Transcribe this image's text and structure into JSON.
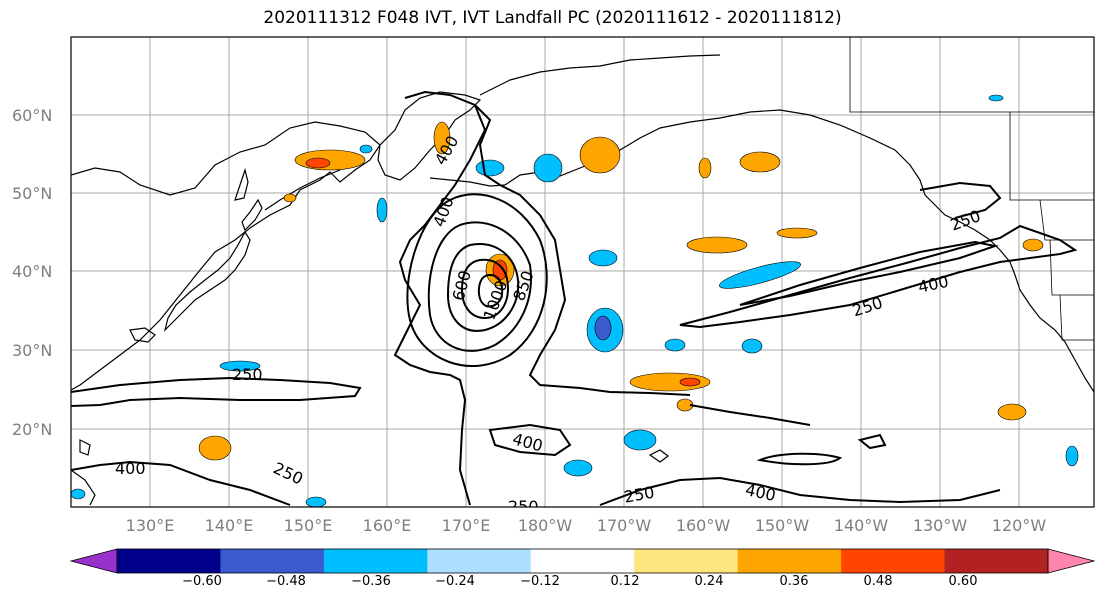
{
  "title": "2020111312 F048 IVT, IVT Landfall PC (2020111612 - 2020111812)",
  "map": {
    "lat_labels": [
      "60°N",
      "50°N",
      "40°N",
      "30°N",
      "20°N"
    ],
    "lon_labels": [
      "130°E",
      "140°E",
      "150°E",
      "160°E",
      "170°E",
      "180°W",
      "170°W",
      "160°W",
      "150°W",
      "140°W",
      "130°W",
      "120°W"
    ],
    "contour_labels": [
      "400",
      "400",
      "600",
      "1000",
      "850",
      "250",
      "250",
      "250",
      "400",
      "400",
      "250",
      "400",
      "250",
      "250",
      "400"
    ],
    "ivt_levels": [
      250,
      400,
      600,
      850,
      1000
    ]
  },
  "colorbar": {
    "ticks": [
      "−0.60",
      "−0.48",
      "−0.36",
      "−0.24",
      "−0.12",
      "0.12",
      "0.24",
      "0.36",
      "0.48",
      "0.60"
    ],
    "colors": [
      "#9932CC",
      "#00008B",
      "#3A5BCE",
      "#00BFFF",
      "#ADE0FF",
      "#FFFFFF",
      "#FFE57F",
      "#FFA500",
      "#FF4500",
      "#B22222",
      "#FF85AE"
    ]
  }
}
